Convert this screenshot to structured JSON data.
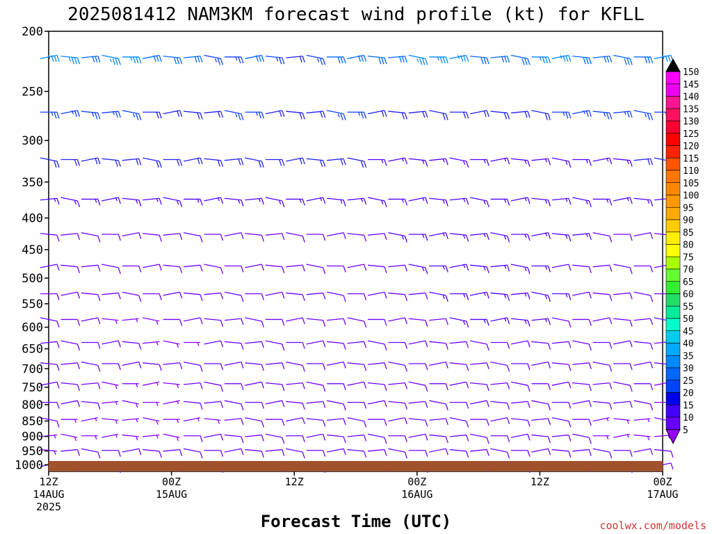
{
  "title": "2025081412 NAM3KM forecast wind profile (kt) for KFLL",
  "watermark": "coolwx.com/models",
  "chart_data": {
    "type": "wind-barb time-height",
    "xlabel": "Forecast Time (UTC)",
    "x_ticks": [
      {
        "hour": 0,
        "line1": "12Z",
        "line2": "14AUG",
        "line3": "2025"
      },
      {
        "hour": 12,
        "line1": "00Z",
        "line2": "15AUG",
        "line3": ""
      },
      {
        "hour": 24,
        "line1": "12Z",
        "line2": "",
        "line3": ""
      },
      {
        "hour": 36,
        "line1": "00Z",
        "line2": "16AUG",
        "line3": ""
      },
      {
        "hour": 48,
        "line1": "12Z",
        "line2": "",
        "line3": ""
      },
      {
        "hour": 60,
        "line1": "00Z",
        "line2": "17AUG",
        "line3": ""
      }
    ],
    "x_range_hours": [
      0,
      60
    ],
    "pressure_ticks_hpa": [
      200,
      250,
      300,
      350,
      400,
      450,
      500,
      550,
      600,
      650,
      700,
      750,
      800,
      850,
      900,
      950,
      1000
    ],
    "y_range_hpa": [
      200,
      1025
    ],
    "y_scale": "log-pressure",
    "barb_levels_hpa": [
      220,
      270,
      322,
      373,
      425,
      478,
      530,
      583,
      635,
      687,
      740,
      793,
      845,
      898,
      948,
      1000
    ],
    "barb_speeds_kt": [
      [
        35,
        35,
        30,
        35,
        35,
        30,
        30,
        30,
        25,
        25,
        30,
        25,
        20,
        25,
        30,
        30,
        30,
        30,
        35,
        35,
        35,
        30,
        30,
        30,
        35,
        35,
        30,
        30,
        30,
        30,
        35
      ],
      [
        25,
        25,
        25,
        25,
        25,
        20,
        20,
        20,
        20,
        25,
        25,
        20,
        20,
        20,
        25,
        25,
        20,
        20,
        20,
        20,
        20,
        20,
        20,
        20,
        20,
        25,
        25,
        25,
        25,
        25,
        25
      ],
      [
        20,
        20,
        20,
        20,
        20,
        20,
        20,
        20,
        20,
        20,
        20,
        20,
        20,
        20,
        20,
        20,
        15,
        15,
        15,
        15,
        15,
        15,
        15,
        15,
        15,
        15,
        15,
        15,
        15,
        20,
        20
      ],
      [
        15,
        15,
        15,
        15,
        15,
        15,
        15,
        15,
        15,
        15,
        15,
        15,
        15,
        15,
        15,
        15,
        15,
        15,
        15,
        15,
        15,
        15,
        15,
        15,
        15,
        15,
        15,
        15,
        15,
        15,
        15
      ],
      [
        10,
        10,
        10,
        10,
        10,
        10,
        10,
        10,
        10,
        10,
        10,
        10,
        10,
        10,
        10,
        10,
        10,
        15,
        15,
        15,
        15,
        15,
        15,
        15,
        15,
        15,
        15,
        10,
        10,
        10,
        10
      ],
      [
        10,
        10,
        10,
        10,
        10,
        10,
        10,
        10,
        10,
        10,
        10,
        10,
        10,
        10,
        10,
        10,
        10,
        10,
        15,
        15,
        15,
        15,
        15,
        15,
        15,
        10,
        10,
        10,
        10,
        10,
        10
      ],
      [
        10,
        10,
        10,
        10,
        10,
        10,
        10,
        10,
        10,
        10,
        10,
        10,
        10,
        10,
        10,
        10,
        10,
        10,
        10,
        15,
        15,
        15,
        15,
        15,
        15,
        15,
        10,
        10,
        10,
        10,
        10
      ],
      [
        10,
        10,
        10,
        5,
        5,
        5,
        10,
        10,
        10,
        10,
        10,
        10,
        10,
        10,
        10,
        10,
        10,
        10,
        10,
        10,
        15,
        15,
        15,
        15,
        15,
        10,
        10,
        10,
        10,
        10,
        10
      ],
      [
        10,
        10,
        10,
        10,
        10,
        5,
        5,
        5,
        10,
        10,
        10,
        10,
        10,
        10,
        10,
        10,
        10,
        10,
        10,
        10,
        10,
        10,
        10,
        10,
        10,
        10,
        10,
        10,
        10,
        10,
        10
      ],
      [
        10,
        10,
        10,
        10,
        10,
        10,
        10,
        10,
        10,
        10,
        10,
        10,
        10,
        10,
        10,
        10,
        10,
        10,
        10,
        10,
        10,
        10,
        10,
        10,
        10,
        10,
        10,
        10,
        10,
        10,
        10
      ],
      [
        10,
        10,
        10,
        5,
        5,
        5,
        5,
        10,
        10,
        10,
        10,
        10,
        10,
        10,
        10,
        10,
        10,
        10,
        10,
        10,
        10,
        10,
        10,
        10,
        10,
        10,
        10,
        10,
        10,
        10,
        5
      ],
      [
        10,
        10,
        10,
        5,
        5,
        5,
        5,
        10,
        10,
        10,
        10,
        10,
        10,
        10,
        10,
        10,
        10,
        10,
        10,
        10,
        10,
        10,
        10,
        10,
        10,
        10,
        10,
        10,
        10,
        10,
        5
      ],
      [
        10,
        5,
        5,
        5,
        5,
        5,
        5,
        5,
        5,
        10,
        10,
        10,
        10,
        10,
        10,
        10,
        10,
        10,
        10,
        10,
        10,
        10,
        10,
        10,
        10,
        10,
        10,
        5,
        5,
        5,
        5
      ],
      [
        5,
        5,
        5,
        5,
        5,
        5,
        5,
        10,
        10,
        10,
        10,
        10,
        10,
        10,
        10,
        10,
        10,
        10,
        10,
        10,
        10,
        10,
        10,
        10,
        10,
        10,
        10,
        5,
        5,
        5,
        5
      ],
      [
        5,
        10,
        10,
        10,
        10,
        10,
        10,
        10,
        10,
        10,
        10,
        10,
        10,
        10,
        10,
        10,
        10,
        10,
        10,
        10,
        10,
        10,
        10,
        10,
        10,
        10,
        10,
        10,
        10,
        10,
        10
      ],
      [
        5,
        10,
        10,
        10,
        10,
        10,
        10,
        10,
        10,
        10,
        10,
        10,
        10,
        10,
        10,
        10,
        10,
        10,
        10,
        10,
        10,
        10,
        10,
        10,
        10,
        10,
        10,
        10,
        10,
        10,
        10
      ]
    ],
    "colorbar": {
      "labels": [
        150,
        145,
        140,
        135,
        130,
        125,
        120,
        115,
        110,
        105,
        100,
        95,
        90,
        85,
        80,
        75,
        70,
        65,
        60,
        55,
        50,
        45,
        40,
        35,
        30,
        25,
        20,
        15,
        10,
        5
      ],
      "colors": [
        "#ff00ff",
        "#ee00ee",
        "#ff1493",
        "#ff1060",
        "#ff0033",
        "#ff0000",
        "#ff2200",
        "#ff5500",
        "#ff7700",
        "#ff8800",
        "#ff9900",
        "#ffaa00",
        "#ffcc00",
        "#ffee00",
        "#ffff00",
        "#aaff00",
        "#66ff33",
        "#33ee33",
        "#22dd66",
        "#00ee99",
        "#00ffcc",
        "#00ccee",
        "#00aaff",
        "#0088ff",
        "#0066ff",
        "#0044ff",
        "#0000ee",
        "#4400ff",
        "#6600ff",
        "#8800ff"
      ],
      "top_arrow_color": "#000000",
      "bottom_arrow_color": "#9900ff"
    },
    "ground_color": "#a0522d"
  }
}
